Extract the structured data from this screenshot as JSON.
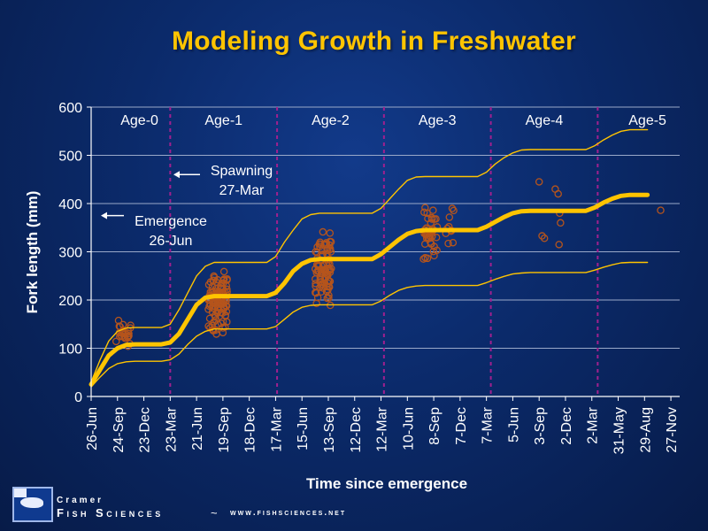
{
  "title": "Modeling Growth in Freshwater",
  "footer": {
    "brand_line1": "Cramer",
    "brand_line2": "Fish Sciences",
    "separator": "~",
    "url": "www.fishsciences.net"
  },
  "chart_data": {
    "type": "line",
    "xlabel": "Time since emergence",
    "ylabel": "Fork length (mm)",
    "ylim": [
      0,
      600
    ],
    "yticks": [
      0,
      100,
      200,
      300,
      400,
      500,
      600
    ],
    "x_tick_labels": [
      "26-Jun",
      "24-Sep",
      "23-Dec",
      "23-Mar",
      "21-Jun",
      "19-Sep",
      "18-Dec",
      "17-Mar",
      "15-Jun",
      "13-Sep",
      "12-Dec",
      "12-Mar",
      "10-Jun",
      "8-Sep",
      "7-Dec",
      "7-Mar",
      "5-Jun",
      "3-Sep",
      "2-Dec",
      "2-Mar",
      "31-May",
      "29-Aug",
      "27-Nov"
    ],
    "x_units": "days since 26-Jun of emergence year",
    "x_tick_values": [
      0,
      90,
      180,
      270,
      360,
      450,
      540,
      630,
      720,
      810,
      900,
      990,
      1080,
      1170,
      1260,
      1350,
      1440,
      1530,
      1620,
      1710,
      1800,
      1890,
      1980
    ],
    "xlim": [
      0,
      2010
    ],
    "grid": "horizontal",
    "age_boundaries": [
      270,
      635,
      1000,
      1365,
      1730
    ],
    "age_labels": [
      "Age-0",
      "Age-1",
      "Age-2",
      "Age-3",
      "Age-4",
      "Age-5"
    ],
    "annotations": [
      {
        "text_line1": "Spawning",
        "text_line2": "27-Mar",
        "arrow_y": 460
      },
      {
        "text_line1": "Emergence",
        "text_line2": "26-Jun",
        "arrow_y": 375
      }
    ],
    "series": [
      {
        "role": "mean",
        "color": "#ffc400",
        "points": [
          [
            0,
            25
          ],
          [
            30,
            55
          ],
          [
            60,
            85
          ],
          [
            90,
            100
          ],
          [
            120,
            107
          ],
          [
            150,
            108
          ],
          [
            240,
            108
          ],
          [
            270,
            112
          ],
          [
            300,
            130
          ],
          [
            330,
            160
          ],
          [
            360,
            190
          ],
          [
            390,
            205
          ],
          [
            420,
            208
          ],
          [
            600,
            208
          ],
          [
            630,
            215
          ],
          [
            660,
            235
          ],
          [
            690,
            260
          ],
          [
            720,
            275
          ],
          [
            750,
            283
          ],
          [
            780,
            285
          ],
          [
            960,
            285
          ],
          [
            990,
            295
          ],
          [
            1020,
            310
          ],
          [
            1050,
            325
          ],
          [
            1080,
            337
          ],
          [
            1110,
            343
          ],
          [
            1140,
            345
          ],
          [
            1320,
            345
          ],
          [
            1350,
            352
          ],
          [
            1380,
            362
          ],
          [
            1410,
            372
          ],
          [
            1440,
            380
          ],
          [
            1470,
            384
          ],
          [
            1500,
            385
          ],
          [
            1690,
            385
          ],
          [
            1720,
            392
          ],
          [
            1750,
            402
          ],
          [
            1780,
            410
          ],
          [
            1810,
            416
          ],
          [
            1840,
            418
          ],
          [
            1900,
            418
          ]
        ]
      },
      {
        "role": "upper",
        "color": "#ffc400",
        "points": [
          [
            0,
            30
          ],
          [
            30,
            75
          ],
          [
            60,
            115
          ],
          [
            90,
            135
          ],
          [
            120,
            142
          ],
          [
            150,
            143
          ],
          [
            240,
            143
          ],
          [
            270,
            150
          ],
          [
            300,
            180
          ],
          [
            330,
            215
          ],
          [
            360,
            250
          ],
          [
            390,
            270
          ],
          [
            420,
            278
          ],
          [
            600,
            278
          ],
          [
            630,
            290
          ],
          [
            660,
            320
          ],
          [
            690,
            345
          ],
          [
            720,
            368
          ],
          [
            750,
            377
          ],
          [
            780,
            380
          ],
          [
            960,
            380
          ],
          [
            990,
            390
          ],
          [
            1020,
            410
          ],
          [
            1050,
            430
          ],
          [
            1080,
            448
          ],
          [
            1110,
            455
          ],
          [
            1140,
            456
          ],
          [
            1320,
            456
          ],
          [
            1350,
            465
          ],
          [
            1380,
            482
          ],
          [
            1410,
            495
          ],
          [
            1440,
            505
          ],
          [
            1470,
            511
          ],
          [
            1500,
            512
          ],
          [
            1690,
            512
          ],
          [
            1720,
            520
          ],
          [
            1750,
            532
          ],
          [
            1780,
            542
          ],
          [
            1810,
            550
          ],
          [
            1840,
            553
          ],
          [
            1900,
            553
          ]
        ]
      },
      {
        "role": "lower",
        "color": "#ffc400",
        "points": [
          [
            0,
            20
          ],
          [
            30,
            40
          ],
          [
            60,
            58
          ],
          [
            90,
            68
          ],
          [
            120,
            72
          ],
          [
            150,
            73
          ],
          [
            240,
            73
          ],
          [
            270,
            76
          ],
          [
            300,
            88
          ],
          [
            330,
            108
          ],
          [
            360,
            125
          ],
          [
            390,
            135
          ],
          [
            420,
            140
          ],
          [
            600,
            140
          ],
          [
            630,
            145
          ],
          [
            660,
            160
          ],
          [
            690,
            175
          ],
          [
            720,
            185
          ],
          [
            750,
            189
          ],
          [
            780,
            190
          ],
          [
            960,
            190
          ],
          [
            990,
            198
          ],
          [
            1020,
            210
          ],
          [
            1050,
            220
          ],
          [
            1080,
            226
          ],
          [
            1110,
            229
          ],
          [
            1140,
            230
          ],
          [
            1320,
            230
          ],
          [
            1350,
            236
          ],
          [
            1380,
            243
          ],
          [
            1410,
            249
          ],
          [
            1440,
            254
          ],
          [
            1470,
            256
          ],
          [
            1500,
            257
          ],
          [
            1690,
            257
          ],
          [
            1720,
            262
          ],
          [
            1750,
            268
          ],
          [
            1780,
            273
          ],
          [
            1810,
            277
          ],
          [
            1840,
            278
          ],
          [
            1900,
            278
          ]
        ]
      }
    ],
    "observations": {
      "color": "#b5541c",
      "groups": [
        {
          "x_range": [
            85,
            135
          ],
          "y_range": [
            90,
            175
          ],
          "n": 25
        },
        {
          "x_range": [
            400,
            465
          ],
          "y_range": [
            120,
            275
          ],
          "n": 120
        },
        {
          "x_range": [
            765,
            820
          ],
          "y_range": [
            175,
            345
          ],
          "n": 90
        },
        {
          "x_range": [
            1135,
            1185
          ],
          "y_range": [
            280,
            410
          ],
          "n": 40
        },
        {
          "x_range": [
            1210,
            1240
          ],
          "y_range": [
            300,
            400
          ],
          "n": 10
        }
      ],
      "points": [
        [
          1530,
          445
        ],
        [
          1540,
          333
        ],
        [
          1548,
          328
        ],
        [
          1585,
          430
        ],
        [
          1595,
          420
        ],
        [
          1600,
          380
        ],
        [
          1603,
          360
        ],
        [
          1598,
          315
        ],
        [
          1945,
          386
        ]
      ]
    }
  }
}
